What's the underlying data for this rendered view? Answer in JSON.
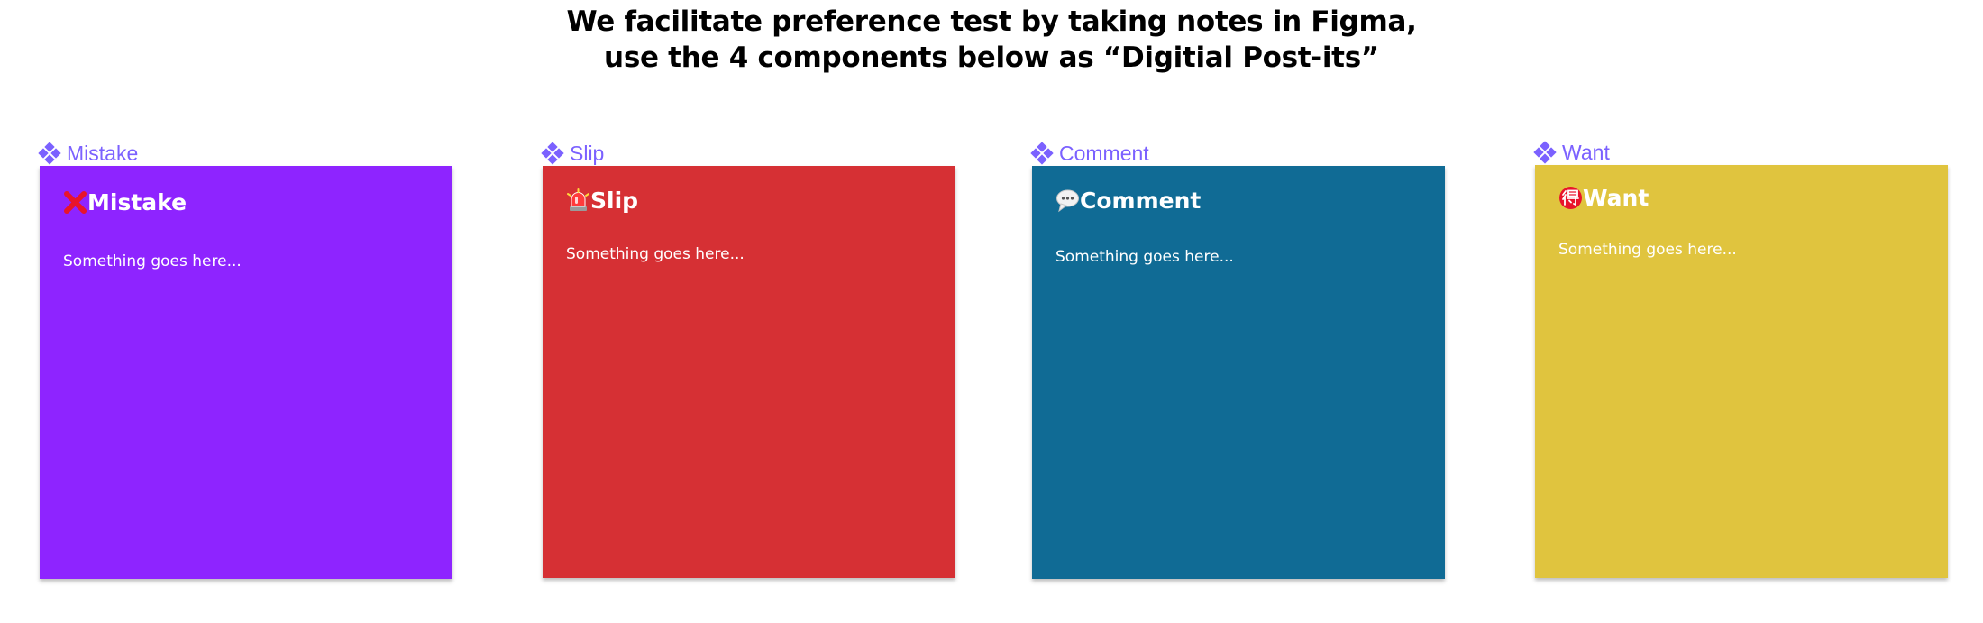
{
  "header": {
    "line1": "We facilitate preference test by taking notes in Figma,",
    "line2": "use the 4 components below as “Digitial Post-its”"
  },
  "components": [
    {
      "label": "Mistake",
      "title": "Mistake",
      "body": "Something goes here...",
      "emoji": "cross-mark-icon",
      "color": "#8e24ff"
    },
    {
      "label": "Slip",
      "title": "Slip",
      "body": "Something goes here...",
      "emoji": "rotating-light-icon",
      "color": "#d63034"
    },
    {
      "label": "Comment",
      "title": "Comment",
      "body": "Something goes here...",
      "emoji": "speech-balloon-icon",
      "color": "#106b95"
    },
    {
      "label": "Want",
      "title": "Want",
      "body": "Something goes here...",
      "emoji": "bargain-ideograph-icon",
      "color": "#e0c43e"
    }
  ],
  "theme": {
    "component_label_color": "#7b61ff"
  }
}
